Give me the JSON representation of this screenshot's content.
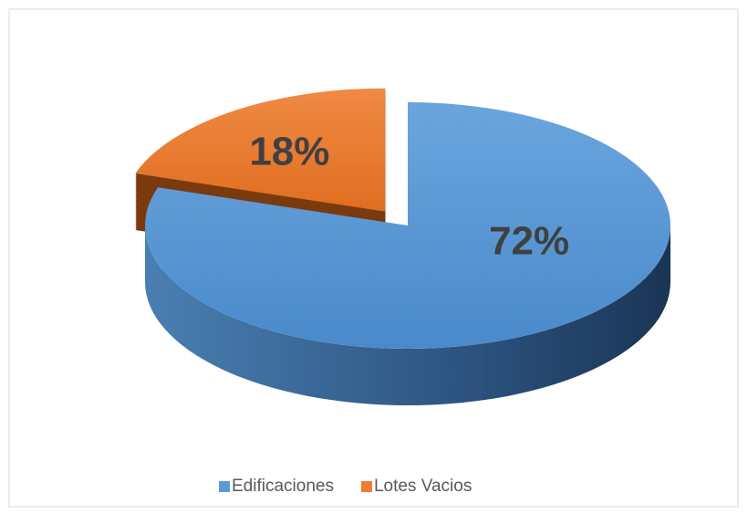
{
  "chart_data": {
    "type": "pie",
    "categories": [
      "Edificaciones",
      "Lotes Vacios"
    ],
    "values": [
      72,
      18
    ],
    "value_labels": [
      "72%",
      "18%"
    ],
    "colors": [
      "#5b9bd5",
      "#ed7d31"
    ],
    "legend": "bottom"
  }
}
